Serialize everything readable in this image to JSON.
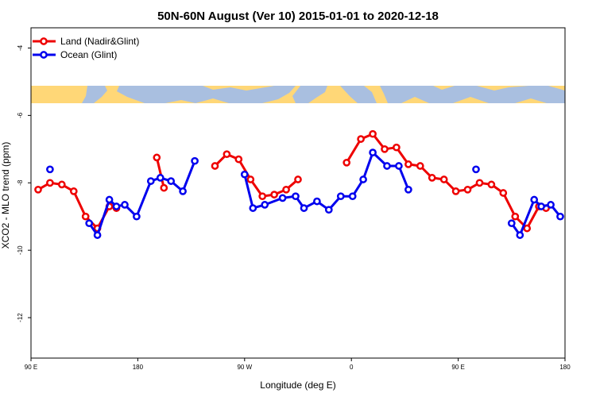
{
  "chart_data": {
    "type": "line",
    "title": "50N-60N August (Ver 10)   2015-01-01 to 2020-12-18",
    "xlabel": "Longitude (deg E)",
    "ylabel": "XCO2 - MLO trend (ppm)",
    "xlim": [
      90,
      540
    ],
    "ylim": [
      -13.2,
      -3.4
    ],
    "x_ticks": [
      {
        "value": 90,
        "label": "90 E"
      },
      {
        "value": 180,
        "label": "180"
      },
      {
        "value": 270,
        "label": "90 W"
      },
      {
        "value": 360,
        "label": "0"
      },
      {
        "value": 450,
        "label": "90 E"
      },
      {
        "value": 540,
        "label": "180"
      }
    ],
    "y_ticks": [
      {
        "value": -4,
        "label": "-4"
      },
      {
        "value": -6,
        "label": "-6"
      },
      {
        "value": -8,
        "label": "-8"
      },
      {
        "value": -10,
        "label": "-10"
      },
      {
        "value": -12,
        "label": "-12"
      }
    ],
    "map_band": {
      "y_top": -4.85,
      "y_bottom": -5.4,
      "description": "world map strip"
    },
    "legend": {
      "placement": "top-left"
    },
    "series": [
      {
        "name": "Land (Nadir&Glint)",
        "color": "#ee0000",
        "segments": [
          [
            [
              96,
              -8.2
            ],
            [
              106,
              -8.0
            ],
            [
              116,
              -8.05
            ],
            [
              126,
              -8.25
            ],
            [
              136,
              -9.0
            ],
            [
              146,
              -9.35
            ],
            [
              156,
              -8.7
            ],
            [
              162,
              -8.75
            ]
          ],
          [
            [
              196,
              -7.25
            ],
            [
              202,
              -8.15
            ]
          ],
          [
            [
              245,
              -7.5
            ],
            [
              255,
              -7.15
            ],
            [
              265,
              -7.3
            ],
            [
              275,
              -7.9
            ],
            [
              285,
              -8.4
            ],
            [
              295,
              -8.35
            ],
            [
              305,
              -8.2
            ],
            [
              315,
              -7.9
            ]
          ],
          [
            [
              356,
              -7.4
            ],
            [
              368,
              -6.7
            ],
            [
              378,
              -6.55
            ],
            [
              388,
              -7.0
            ],
            [
              398,
              -6.95
            ],
            [
              408,
              -7.45
            ],
            [
              418,
              -7.5
            ],
            [
              428,
              -7.85
            ],
            [
              438,
              -7.9
            ],
            [
              448,
              -8.25
            ],
            [
              458,
              -8.2
            ],
            [
              468,
              -8.0
            ],
            [
              478,
              -8.05
            ],
            [
              488,
              -8.3
            ],
            [
              498,
              -9.0
            ],
            [
              508,
              -9.35
            ],
            [
              518,
              -8.7
            ],
            [
              524,
              -8.75
            ]
          ]
        ]
      },
      {
        "name": "Ocean (Glint)",
        "color": "#0000ee",
        "segments": [
          [
            [
              106,
              -7.6
            ]
          ],
          [
            [
              139,
              -9.2
            ],
            [
              146,
              -9.55
            ],
            [
              156,
              -8.5
            ],
            [
              162,
              -8.7
            ],
            [
              169,
              -8.65
            ],
            [
              179,
              -9.0
            ],
            [
              191,
              -7.95
            ],
            [
              199,
              -7.85
            ],
            [
              208,
              -7.95
            ],
            [
              218,
              -8.25
            ],
            [
              228,
              -7.35
            ]
          ],
          [
            [
              270,
              -7.75
            ],
            [
              277,
              -8.75
            ],
            [
              287,
              -8.65
            ],
            [
              302,
              -8.45
            ],
            [
              313,
              -8.4
            ],
            [
              320,
              -8.75
            ],
            [
              331,
              -8.55
            ],
            [
              341,
              -8.8
            ],
            [
              351,
              -8.4
            ],
            [
              361,
              -8.4
            ],
            [
              370,
              -7.9
            ],
            [
              378,
              -7.1
            ],
            [
              390,
              -7.5
            ],
            [
              400,
              -7.5
            ],
            [
              408,
              -8.2
            ]
          ]
        ]
      },
      {
        "name": "",
        "color": "#0000ee",
        "segments": [
          [
            [
              465,
              -7.6
            ]
          ],
          [
            [
              495,
              -9.2
            ],
            [
              502,
              -9.55
            ],
            [
              514,
              -8.5
            ],
            [
              520,
              -8.7
            ],
            [
              528,
              -8.65
            ],
            [
              536,
              -9.0
            ]
          ]
        ]
      }
    ]
  }
}
